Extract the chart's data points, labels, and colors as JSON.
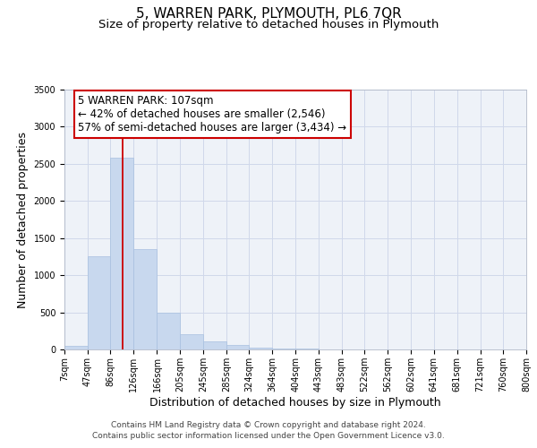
{
  "title": "5, WARREN PARK, PLYMOUTH, PL6 7QR",
  "subtitle": "Size of property relative to detached houses in Plymouth",
  "xlabel": "Distribution of detached houses by size in Plymouth",
  "ylabel": "Number of detached properties",
  "bar_left_edges": [
    7,
    47,
    86,
    126,
    166,
    205,
    245,
    285,
    324,
    364,
    404,
    443,
    483,
    522,
    562,
    602,
    641,
    681,
    721,
    760
  ],
  "bar_widths": [
    40,
    39,
    40,
    40,
    39,
    40,
    40,
    39,
    40,
    40,
    39,
    40,
    39,
    40,
    40,
    39,
    40,
    40,
    39,
    40
  ],
  "bar_heights": [
    50,
    1250,
    2580,
    1350,
    500,
    200,
    110,
    55,
    30,
    15,
    10,
    5,
    5,
    0,
    0,
    0,
    0,
    0,
    0,
    0
  ],
  "bar_color": "#c8d8ee",
  "bar_edge_color": "#a8c0e0",
  "vline_x": 107,
  "vline_color": "#cc0000",
  "ylim": [
    0,
    3500
  ],
  "yticks": [
    0,
    500,
    1000,
    1500,
    2000,
    2500,
    3000,
    3500
  ],
  "xtick_labels": [
    "7sqm",
    "47sqm",
    "86sqm",
    "126sqm",
    "166sqm",
    "205sqm",
    "245sqm",
    "285sqm",
    "324sqm",
    "364sqm",
    "404sqm",
    "443sqm",
    "483sqm",
    "522sqm",
    "562sqm",
    "602sqm",
    "641sqm",
    "681sqm",
    "721sqm",
    "760sqm",
    "800sqm"
  ],
  "xtick_positions": [
    7,
    47,
    86,
    126,
    166,
    205,
    245,
    285,
    324,
    364,
    404,
    443,
    483,
    522,
    562,
    602,
    641,
    681,
    721,
    760,
    800
  ],
  "annotation_title": "5 WARREN PARK: 107sqm",
  "annotation_line1": "← 42% of detached houses are smaller (2,546)",
  "annotation_line2": "57% of semi-detached houses are larger (3,434) →",
  "annotation_box_color": "#ffffff",
  "annotation_box_edge": "#cc0000",
  "footer1": "Contains HM Land Registry data © Crown copyright and database right 2024.",
  "footer2": "Contains public sector information licensed under the Open Government Licence v3.0.",
  "grid_color": "#d0d8ea",
  "bg_color": "#eef2f8",
  "title_fontsize": 11,
  "subtitle_fontsize": 9.5,
  "axis_label_fontsize": 9,
  "tick_fontsize": 7,
  "annotation_fontsize": 8.5,
  "footer_fontsize": 6.5,
  "xlim_left": 7,
  "xlim_right": 800
}
